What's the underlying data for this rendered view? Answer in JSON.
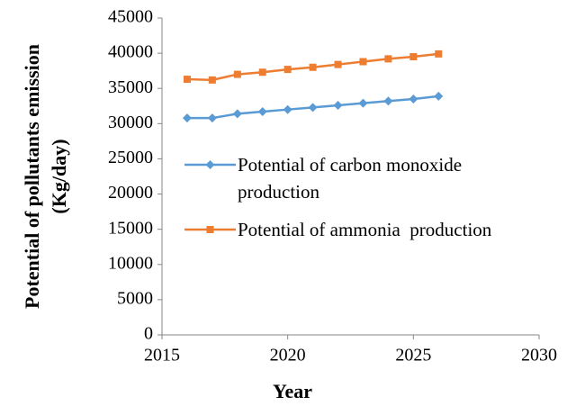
{
  "chart_data": {
    "type": "line",
    "xlabel": "Year",
    "ylabel": [
      "Potential of pollutants emission",
      "(Kg/day)"
    ],
    "x": [
      2016,
      2017,
      2018,
      2019,
      2020,
      2021,
      2022,
      2023,
      2024,
      2025,
      2026
    ],
    "series": [
      {
        "name": "Potential of carbon monoxide production",
        "color": "#5b9bd5",
        "marker": "diamond",
        "values": [
          30800,
          30800,
          31400,
          31700,
          32000,
          32300,
          32600,
          32900,
          33200,
          33500,
          33900
        ]
      },
      {
        "name": "Potential of ammonia  production",
        "color": "#ed7d31",
        "marker": "square",
        "values": [
          36300,
          36200,
          37000,
          37300,
          37700,
          38000,
          38400,
          38800,
          39200,
          39500,
          39900
        ]
      }
    ],
    "xlim": [
      2015,
      2030
    ],
    "xticks": [
      2015,
      2020,
      2025,
      2030
    ],
    "ylim": [
      0,
      45000
    ],
    "yticks": [
      0,
      5000,
      10000,
      15000,
      20000,
      25000,
      30000,
      35000,
      40000,
      45000
    ],
    "grid": false
  }
}
